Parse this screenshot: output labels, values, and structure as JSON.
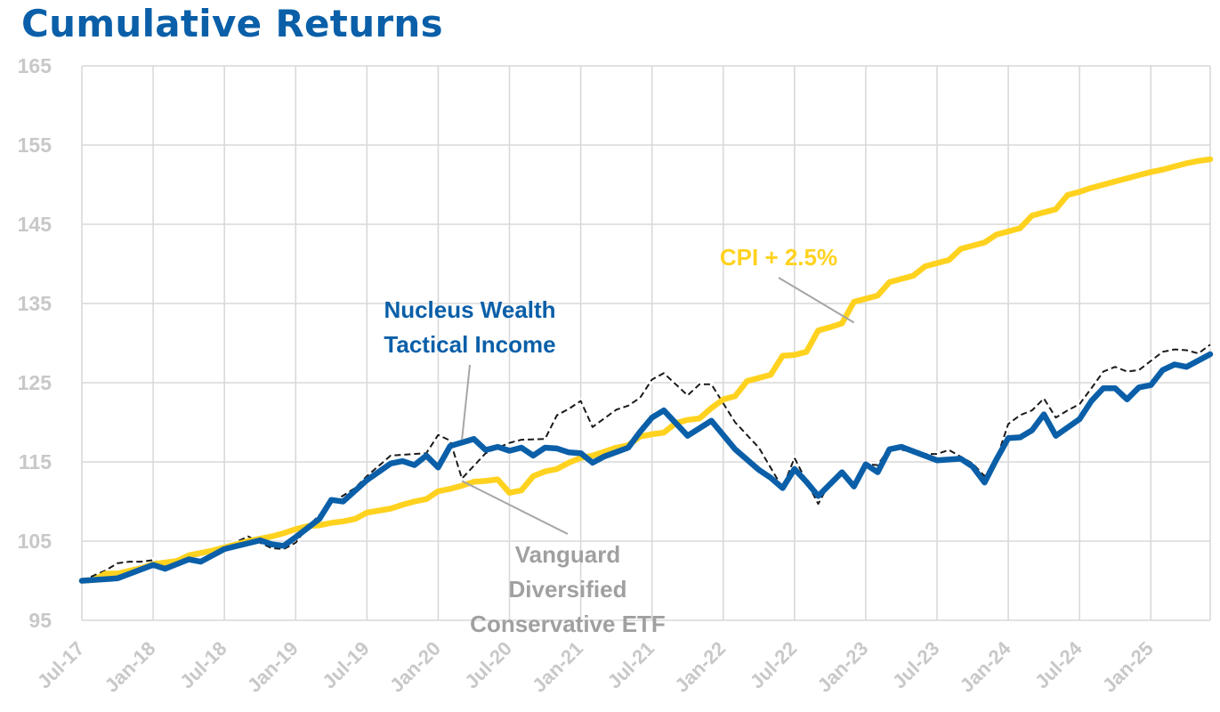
{
  "chart_data": {
    "type": "line",
    "title": "Cumulative Returns",
    "xlabel": "",
    "ylabel": "",
    "ylim": [
      95,
      165
    ],
    "yticks": [
      95,
      105,
      115,
      125,
      135,
      145,
      155,
      165
    ],
    "x_tick_labels": [
      "Jul-17",
      "Jan-18",
      "Jul-18",
      "Jan-19",
      "Jul-19",
      "Jan-20",
      "Jul-20",
      "Jan-21",
      "Jul-21",
      "Jan-22",
      "Jul-22",
      "Jan-23",
      "Jul-23",
      "Jan-24",
      "Jul-24",
      "Jan-25"
    ],
    "grid": true,
    "legend": "inline annotations",
    "x_start": "Jul-17",
    "x_end": "Jun-25",
    "series": [
      {
        "name": "Nucleus Wealth Tactical Income",
        "color": "#0a5fa8",
        "style": "solid",
        "points": [
          [
            "Jul-17",
            100.0
          ],
          [
            "Oct-17",
            100.3
          ],
          [
            "Jan-18",
            102.0
          ],
          [
            "Feb-18",
            101.5
          ],
          [
            "Apr-18",
            102.7
          ],
          [
            "May-18",
            102.4
          ],
          [
            "Jul-18",
            104.0
          ],
          [
            "Oct-18",
            105.1
          ],
          [
            "Nov-18",
            104.6
          ],
          [
            "Dec-18",
            104.4
          ],
          [
            "Jan-19",
            105.5
          ],
          [
            "Mar-19",
            107.8
          ],
          [
            "Apr-19",
            110.2
          ],
          [
            "May-19",
            110.0
          ],
          [
            "Jul-19",
            112.7
          ],
          [
            "Sep-19",
            114.8
          ],
          [
            "Oct-19",
            115.1
          ],
          [
            "Nov-19",
            114.6
          ],
          [
            "Dec-19",
            115.8
          ],
          [
            "Jan-20",
            114.3
          ],
          [
            "Feb-20",
            117.0
          ],
          [
            "Apr-20",
            117.9
          ],
          [
            "May-20",
            116.5
          ],
          [
            "Jun-20",
            116.9
          ],
          [
            "Jul-20",
            116.4
          ],
          [
            "Aug-20",
            116.8
          ],
          [
            "Sep-20",
            115.8
          ],
          [
            "Oct-20",
            116.8
          ],
          [
            "Nov-20",
            116.7
          ],
          [
            "Dec-20",
            116.2
          ],
          [
            "Jan-21",
            116.1
          ],
          [
            "Feb-21",
            114.9
          ],
          [
            "Mar-21",
            115.7
          ],
          [
            "May-21",
            116.8
          ],
          [
            "Jun-21",
            118.8
          ],
          [
            "Jul-21",
            120.6
          ],
          [
            "Aug-21",
            121.5
          ],
          [
            "Oct-21",
            118.3
          ],
          [
            "Dec-21",
            120.2
          ],
          [
            "Feb-22",
            116.6
          ],
          [
            "Apr-22",
            114.0
          ],
          [
            "May-22",
            113.0
          ],
          [
            "Jun-22",
            111.7
          ],
          [
            "Jul-22",
            114.1
          ],
          [
            "Aug-22",
            112.5
          ],
          [
            "Sep-22",
            110.7
          ],
          [
            "Nov-22",
            113.7
          ],
          [
            "Dec-22",
            111.9
          ],
          [
            "Jan-23",
            114.7
          ],
          [
            "Feb-23",
            113.7
          ],
          [
            "Mar-23",
            116.6
          ],
          [
            "Apr-23",
            116.9
          ],
          [
            "Jul-23",
            115.2
          ],
          [
            "Sep-23",
            115.4
          ],
          [
            "Oct-23",
            114.4
          ],
          [
            "Nov-23",
            112.4
          ],
          [
            "Dec-23",
            115.3
          ],
          [
            "Jan-24",
            118.0
          ],
          [
            "Feb-24",
            118.1
          ],
          [
            "Mar-24",
            119.0
          ],
          [
            "Apr-24",
            121.0
          ],
          [
            "May-24",
            118.3
          ],
          [
            "Jul-24",
            120.4
          ],
          [
            "Aug-24",
            122.7
          ],
          [
            "Sep-24",
            124.3
          ],
          [
            "Oct-24",
            124.3
          ],
          [
            "Nov-24",
            122.9
          ],
          [
            "Dec-24",
            124.4
          ],
          [
            "Jan-25",
            124.7
          ],
          [
            "Feb-25",
            126.6
          ],
          [
            "Mar-25",
            127.3
          ],
          [
            "Apr-25",
            127.0
          ],
          [
            "Jun-25",
            128.6
          ]
        ]
      },
      {
        "name": "Vanguard Diversified Conservative ETF",
        "color": "#1a1a1a",
        "style": "dashed",
        "points": [
          [
            "Jul-17",
            100.0
          ],
          [
            "Sep-17",
            101.3
          ],
          [
            "Oct-17",
            102.2
          ],
          [
            "Nov-17",
            102.4
          ],
          [
            "Dec-17",
            102.4
          ],
          [
            "Jan-18",
            102.6
          ],
          [
            "Feb-18",
            102.0
          ],
          [
            "Apr-18",
            103.0
          ],
          [
            "May-18",
            103.2
          ],
          [
            "Jul-18",
            104.2
          ],
          [
            "Sep-18",
            105.6
          ],
          [
            "Oct-18",
            104.8
          ],
          [
            "Nov-18",
            104.1
          ],
          [
            "Dec-18",
            104.0
          ],
          [
            "Jan-19",
            104.8
          ],
          [
            "Feb-19",
            106.8
          ],
          [
            "Apr-19",
            109.8
          ],
          [
            "Jun-19",
            111.7
          ],
          [
            "Jul-19",
            113.2
          ],
          [
            "Sep-19",
            115.8
          ],
          [
            "Oct-19",
            115.9
          ],
          [
            "Dec-19",
            116.1
          ],
          [
            "Jan-20",
            118.4
          ],
          [
            "Feb-20",
            117.7
          ],
          [
            "Mar-20",
            112.9
          ],
          [
            "May-20",
            116.1
          ],
          [
            "Jul-20",
            117.4
          ],
          [
            "Aug-20",
            117.8
          ],
          [
            "Oct-20",
            117.9
          ],
          [
            "Nov-20",
            120.9
          ],
          [
            "Dec-20",
            121.7
          ],
          [
            "Jan-21",
            122.7
          ],
          [
            "Feb-21",
            119.4
          ],
          [
            "Apr-21",
            121.6
          ],
          [
            "May-21",
            122.1
          ],
          [
            "Jun-21",
            123.1
          ],
          [
            "Jul-21",
            125.4
          ],
          [
            "Aug-21",
            126.2
          ],
          [
            "Oct-21",
            123.4
          ],
          [
            "Nov-21",
            124.8
          ],
          [
            "Dec-21",
            124.8
          ],
          [
            "Feb-22",
            120.0
          ],
          [
            "Apr-22",
            116.8
          ],
          [
            "Jun-22",
            111.7
          ],
          [
            "Jul-22",
            115.5
          ],
          [
            "Sep-22",
            109.7
          ],
          [
            "Oct-22",
            112.5
          ],
          [
            "Nov-22",
            113.7
          ],
          [
            "Dec-22",
            112.3
          ],
          [
            "Jan-23",
            114.7
          ],
          [
            "Feb-23",
            114.6
          ],
          [
            "Mar-23",
            116.8
          ],
          [
            "Jun-23",
            116.0
          ],
          [
            "Jul-23",
            116.0
          ],
          [
            "Aug-23",
            116.5
          ],
          [
            "Oct-23",
            114.8
          ],
          [
            "Nov-23",
            113.2
          ],
          [
            "Dec-23",
            115.3
          ],
          [
            "Jan-24",
            119.8
          ],
          [
            "Feb-24",
            120.9
          ],
          [
            "Mar-24",
            121.5
          ],
          [
            "Apr-24",
            123.0
          ],
          [
            "May-24",
            120.6
          ],
          [
            "Jun-24",
            121.5
          ],
          [
            "Jul-24",
            122.3
          ],
          [
            "Aug-24",
            124.3
          ],
          [
            "Sep-24",
            126.4
          ],
          [
            "Oct-24",
            127.0
          ],
          [
            "Nov-24",
            126.4
          ],
          [
            "Dec-24",
            126.6
          ],
          [
            "Feb-25",
            128.9
          ],
          [
            "Mar-25",
            129.2
          ],
          [
            "Apr-25",
            129.1
          ],
          [
            "May-25",
            128.7
          ],
          [
            "Jun-25",
            129.8
          ]
        ]
      },
      {
        "name": "CPI + 2.5%",
        "color": "#ffd21f",
        "style": "solid",
        "points": [
          [
            "Jul-17",
            100.0
          ],
          [
            "Aug-17",
            100.1
          ],
          [
            "Sep-17",
            100.9
          ],
          [
            "Oct-17",
            100.9
          ],
          [
            "Dec-17",
            101.6
          ],
          [
            "Jan-18",
            102.1
          ],
          [
            "Mar-18",
            102.5
          ],
          [
            "Apr-18",
            103.2
          ],
          [
            "Jun-18",
            103.8
          ],
          [
            "Jul-18",
            104.2
          ],
          [
            "Aug-18",
            104.6
          ],
          [
            "Sep-18",
            105.0
          ],
          [
            "Nov-18",
            105.6
          ],
          [
            "Dec-18",
            106.0
          ],
          [
            "Jan-19",
            106.5
          ],
          [
            "Feb-19",
            106.9
          ],
          [
            "Mar-19",
            107.0
          ],
          [
            "Apr-19",
            107.3
          ],
          [
            "May-19",
            107.5
          ],
          [
            "Jun-19",
            107.8
          ],
          [
            "Jul-19",
            108.6
          ],
          [
            "Sep-19",
            109.1
          ],
          [
            "Oct-19",
            109.6
          ],
          [
            "Nov-19",
            110.0
          ],
          [
            "Dec-19",
            110.3
          ],
          [
            "Jan-20",
            111.3
          ],
          [
            "Feb-20",
            111.6
          ],
          [
            "Mar-20",
            112.0
          ],
          [
            "Apr-20",
            112.5
          ],
          [
            "May-20",
            112.6
          ],
          [
            "Jun-20",
            112.8
          ],
          [
            "Jul-20",
            111.1
          ],
          [
            "Aug-20",
            111.4
          ],
          [
            "Sep-20",
            113.2
          ],
          [
            "Oct-20",
            113.8
          ],
          [
            "Nov-20",
            114.1
          ],
          [
            "Dec-20",
            114.9
          ],
          [
            "Jan-21",
            115.5
          ],
          [
            "Feb-21",
            115.8
          ],
          [
            "Mar-21",
            116.3
          ],
          [
            "Apr-21",
            116.8
          ],
          [
            "May-21",
            117.1
          ],
          [
            "Jun-21",
            118.2
          ],
          [
            "Jul-21",
            118.5
          ],
          [
            "Aug-21",
            118.7
          ],
          [
            "Sep-21",
            119.9
          ],
          [
            "Oct-21",
            120.3
          ],
          [
            "Nov-21",
            120.5
          ],
          [
            "Dec-21",
            121.8
          ],
          [
            "Jan-22",
            122.9
          ],
          [
            "Feb-22",
            123.3
          ],
          [
            "Mar-22",
            125.2
          ],
          [
            "Apr-22",
            125.6
          ],
          [
            "May-22",
            126.0
          ],
          [
            "Jun-22",
            128.4
          ],
          [
            "Jul-22",
            128.5
          ],
          [
            "Aug-22",
            128.9
          ],
          [
            "Sep-22",
            131.6
          ],
          [
            "Oct-22",
            132.0
          ],
          [
            "Nov-22",
            132.5
          ],
          [
            "Dec-22",
            135.2
          ],
          [
            "Jan-23",
            135.6
          ],
          [
            "Feb-23",
            136.0
          ],
          [
            "Mar-23",
            137.7
          ],
          [
            "Apr-23",
            138.1
          ],
          [
            "May-23",
            138.5
          ],
          [
            "Jun-23",
            139.7
          ],
          [
            "Jul-23",
            140.1
          ],
          [
            "Aug-23",
            140.5
          ],
          [
            "Sep-23",
            141.9
          ],
          [
            "Oct-23",
            142.3
          ],
          [
            "Nov-23",
            142.7
          ],
          [
            "Dec-23",
            143.7
          ],
          [
            "Jan-24",
            144.1
          ],
          [
            "Feb-24",
            144.5
          ],
          [
            "Mar-24",
            146.1
          ],
          [
            "Apr-24",
            146.5
          ],
          [
            "May-24",
            146.9
          ],
          [
            "Jun-24",
            148.7
          ],
          [
            "Jul-24",
            149.1
          ],
          [
            "Aug-24",
            149.6
          ],
          [
            "Sep-24",
            150.0
          ],
          [
            "Oct-24",
            150.4
          ],
          [
            "Nov-24",
            150.8
          ],
          [
            "Dec-24",
            151.2
          ],
          [
            "Jan-25",
            151.6
          ],
          [
            "Feb-25",
            151.9
          ],
          [
            "Mar-25",
            152.3
          ],
          [
            "Apr-25",
            152.7
          ],
          [
            "May-25",
            153.0
          ],
          [
            "Jun-25",
            153.2
          ]
        ]
      }
    ],
    "annotations": [
      {
        "lines": [
          "CPI + 2.5%"
        ],
        "color": "#ffd21f",
        "points_to": [
          "Dec-22",
          132.6
        ]
      },
      {
        "lines": [
          "Nucleus Wealth",
          "Tactical Income"
        ],
        "color": "#0a5fa8",
        "points_to": [
          "Mar-20",
          117.8
        ]
      },
      {
        "lines": [
          "Vanguard",
          "Diversified",
          "Conservative ETF"
        ],
        "color": "#a0a0a0",
        "points_to": [
          "Mar-20",
          112.6
        ]
      }
    ]
  }
}
